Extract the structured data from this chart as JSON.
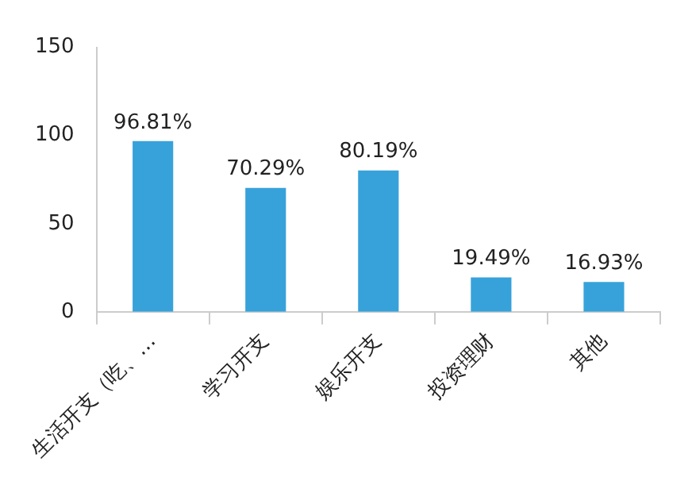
{
  "chart_data": {
    "type": "bar",
    "categories": [
      "生活开支（吃、…",
      "学习开支",
      "娱乐开支",
      "投资理财",
      "其他"
    ],
    "values": [
      96.81,
      70.29,
      80.19,
      19.49,
      16.93
    ],
    "value_labels": [
      "96.81%",
      "70.29%",
      "80.19%",
      "19.49%",
      "16.93%"
    ],
    "color": "#37a2da",
    "ylim": [
      0,
      150
    ],
    "yticks": [
      0,
      50,
      100,
      150
    ],
    "grid": false,
    "legend": false
  }
}
